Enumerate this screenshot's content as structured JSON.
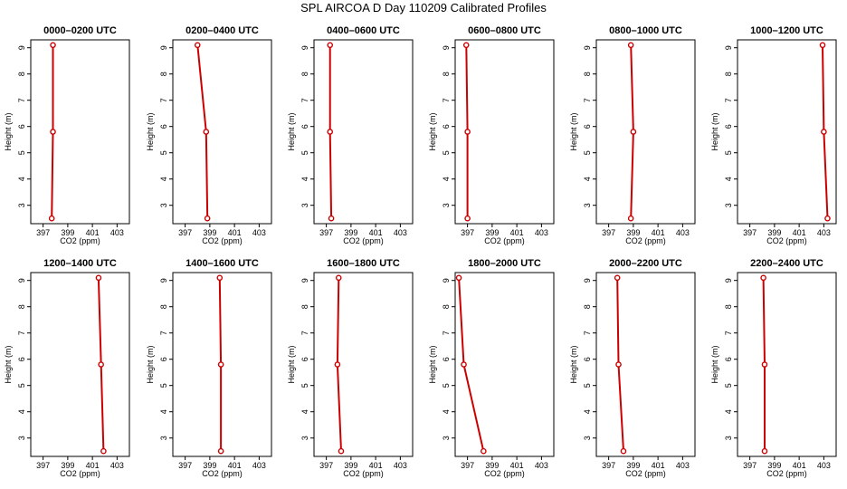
{
  "figure": {
    "title": "SPL AIRCOA D  Day 110209  Calibrated Profiles"
  },
  "colors": {
    "profile_line": "#cc0000",
    "axis": "#000000",
    "background": "#ffffff"
  },
  "chart_data": [
    {
      "type": "line",
      "title": "0000–0200 UTC",
      "xlabel": "CO2 (ppm)",
      "ylabel": "Height (m)",
      "xlim": [
        396,
        404
      ],
      "ylim": [
        2.3,
        9.3
      ],
      "xticks": [
        "397",
        "399",
        "401",
        "403"
      ],
      "yticks": [
        "3",
        "4",
        "5",
        "6",
        "7",
        "8",
        "9"
      ],
      "grid": false,
      "series": [
        {
          "name": "profile",
          "x": [
            397.7,
            397.8,
            397.8
          ],
          "y": [
            2.5,
            5.8,
            9.1
          ]
        }
      ]
    },
    {
      "type": "line",
      "title": "0200–0400 UTC",
      "xlabel": "CO2 (ppm)",
      "ylabel": "Height (m)",
      "xlim": [
        396,
        404
      ],
      "ylim": [
        2.3,
        9.3
      ],
      "xticks": [
        "397",
        "399",
        "401",
        "403"
      ],
      "yticks": [
        "3",
        "4",
        "5",
        "6",
        "7",
        "8",
        "9"
      ],
      "grid": false,
      "series": [
        {
          "name": "profile",
          "x": [
            398.8,
            398.7,
            398.0
          ],
          "y": [
            2.5,
            5.8,
            9.1
          ]
        }
      ]
    },
    {
      "type": "line",
      "title": "0400–0600 UTC",
      "xlabel": "CO2 (ppm)",
      "ylabel": "Height (m)",
      "xlim": [
        396,
        404
      ],
      "ylim": [
        2.3,
        9.3
      ],
      "xticks": [
        "397",
        "399",
        "401",
        "403"
      ],
      "yticks": [
        "3",
        "4",
        "5",
        "6",
        "7",
        "8",
        "9"
      ],
      "grid": false,
      "series": [
        {
          "name": "profile",
          "x": [
            397.4,
            397.3,
            397.3
          ],
          "y": [
            2.5,
            5.8,
            9.1
          ]
        }
      ]
    },
    {
      "type": "line",
      "title": "0600–0800 UTC",
      "xlabel": "CO2 (ppm)",
      "ylabel": "Height (m)",
      "xlim": [
        396,
        404
      ],
      "ylim": [
        2.3,
        9.3
      ],
      "xticks": [
        "397",
        "399",
        "401",
        "403"
      ],
      "yticks": [
        "3",
        "4",
        "5",
        "6",
        "7",
        "8",
        "9"
      ],
      "grid": false,
      "series": [
        {
          "name": "profile",
          "x": [
            397.0,
            397.0,
            396.9
          ],
          "y": [
            2.5,
            5.8,
            9.1
          ]
        }
      ]
    },
    {
      "type": "line",
      "title": "0800–1000 UTC",
      "xlabel": "CO2 (ppm)",
      "ylabel": "Height (m)",
      "xlim": [
        396,
        404
      ],
      "ylim": [
        2.3,
        9.3
      ],
      "xticks": [
        "397",
        "399",
        "401",
        "403"
      ],
      "yticks": [
        "3",
        "4",
        "5",
        "6",
        "7",
        "8",
        "9"
      ],
      "grid": false,
      "series": [
        {
          "name": "profile",
          "x": [
            398.8,
            399.0,
            398.8
          ],
          "y": [
            2.5,
            5.8,
            9.1
          ]
        }
      ]
    },
    {
      "type": "line",
      "title": "1000–1200 UTC",
      "xlabel": "CO2 (ppm)",
      "ylabel": "Height (m)",
      "xlim": [
        396,
        404
      ],
      "ylim": [
        2.3,
        9.3
      ],
      "xticks": [
        "397",
        "399",
        "401",
        "403"
      ],
      "yticks": [
        "3",
        "4",
        "5",
        "6",
        "7",
        "8",
        "9"
      ],
      "grid": false,
      "series": [
        {
          "name": "profile",
          "x": [
            403.3,
            403.0,
            402.9
          ],
          "y": [
            2.5,
            5.8,
            9.1
          ]
        }
      ]
    },
    {
      "type": "line",
      "title": "1200–1400 UTC",
      "xlabel": "CO2 (ppm)",
      "ylabel": "Height (m)",
      "xlim": [
        396,
        404
      ],
      "ylim": [
        2.3,
        9.3
      ],
      "xticks": [
        "397",
        "399",
        "401",
        "403"
      ],
      "yticks": [
        "3",
        "4",
        "5",
        "6",
        "7",
        "8",
        "9"
      ],
      "grid": false,
      "series": [
        {
          "name": "profile",
          "x": [
            401.9,
            401.7,
            401.5
          ],
          "y": [
            2.5,
            5.8,
            9.1
          ]
        }
      ]
    },
    {
      "type": "line",
      "title": "1400–1600 UTC",
      "xlabel": "CO2 (ppm)",
      "ylabel": "Height (m)",
      "xlim": [
        396,
        404
      ],
      "ylim": [
        2.3,
        9.3
      ],
      "xticks": [
        "397",
        "399",
        "401",
        "403"
      ],
      "yticks": [
        "3",
        "4",
        "5",
        "6",
        "7",
        "8",
        "9"
      ],
      "grid": false,
      "series": [
        {
          "name": "profile",
          "x": [
            399.9,
            399.9,
            399.8
          ],
          "y": [
            2.5,
            5.8,
            9.1
          ]
        }
      ]
    },
    {
      "type": "line",
      "title": "1600–1800 UTC",
      "xlabel": "CO2 (ppm)",
      "ylabel": "Height (m)",
      "xlim": [
        396,
        404
      ],
      "ylim": [
        2.3,
        9.3
      ],
      "xticks": [
        "397",
        "399",
        "401",
        "403"
      ],
      "yticks": [
        "3",
        "4",
        "5",
        "6",
        "7",
        "8",
        "9"
      ],
      "grid": false,
      "series": [
        {
          "name": "profile",
          "x": [
            398.2,
            397.9,
            398.0
          ],
          "y": [
            2.5,
            5.8,
            9.1
          ]
        }
      ]
    },
    {
      "type": "line",
      "title": "1800–2000 UTC",
      "xlabel": "CO2 (ppm)",
      "ylabel": "Height (m)",
      "xlim": [
        396,
        404
      ],
      "ylim": [
        2.3,
        9.3
      ],
      "xticks": [
        "397",
        "399",
        "401",
        "403"
      ],
      "yticks": [
        "3",
        "4",
        "5",
        "6",
        "7",
        "8",
        "9"
      ],
      "grid": false,
      "series": [
        {
          "name": "profile",
          "x": [
            398.3,
            396.7,
            396.3
          ],
          "y": [
            2.5,
            5.8,
            9.1
          ]
        }
      ]
    },
    {
      "type": "line",
      "title": "2000–2200 UTC",
      "xlabel": "CO2 (ppm)",
      "ylabel": "Height (m)",
      "xlim": [
        396,
        404
      ],
      "ylim": [
        2.3,
        9.3
      ],
      "xticks": [
        "397",
        "399",
        "401",
        "403"
      ],
      "yticks": [
        "3",
        "4",
        "5",
        "6",
        "7",
        "8",
        "9"
      ],
      "grid": false,
      "series": [
        {
          "name": "profile",
          "x": [
            398.2,
            397.8,
            397.7
          ],
          "y": [
            2.5,
            5.8,
            9.1
          ]
        }
      ]
    },
    {
      "type": "line",
      "title": "2200–2400 UTC",
      "xlabel": "CO2 (ppm)",
      "ylabel": "Height (m)",
      "xlim": [
        396,
        404
      ],
      "ylim": [
        2.3,
        9.3
      ],
      "xticks": [
        "397",
        "399",
        "401",
        "403"
      ],
      "yticks": [
        "3",
        "4",
        "5",
        "6",
        "7",
        "8",
        "9"
      ],
      "grid": false,
      "series": [
        {
          "name": "profile",
          "x": [
            398.2,
            398.2,
            398.1
          ],
          "y": [
            2.5,
            5.8,
            9.1
          ]
        }
      ]
    }
  ]
}
